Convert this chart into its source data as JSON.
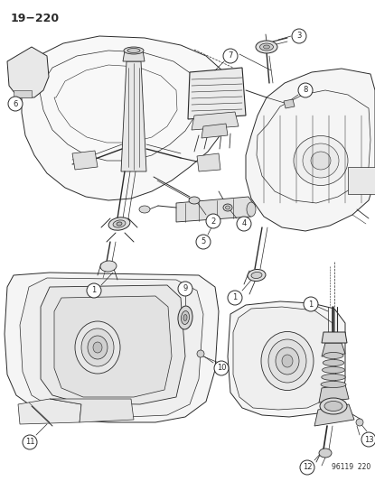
{
  "title": "19−220",
  "part_number": "96119  220",
  "bg": "#ffffff",
  "lc": "#2a2a2a",
  "figsize": [
    4.15,
    5.33
  ],
  "dpi": 100
}
